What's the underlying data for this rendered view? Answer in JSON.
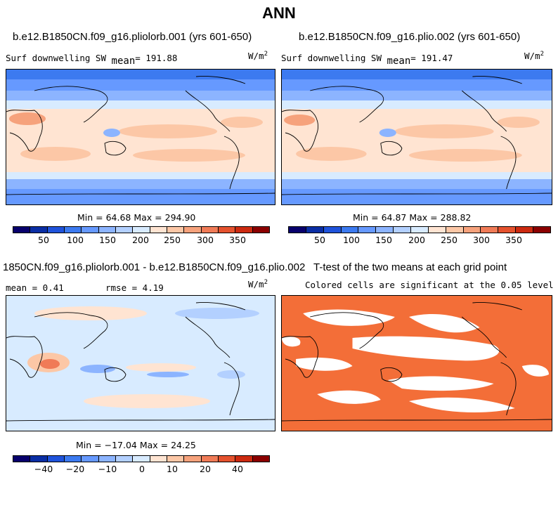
{
  "figure": {
    "title": "ANN"
  },
  "panels": [
    {
      "title": "b.e12.B1850CN.f09_g16.pliolorb.001 (yrs 601-650)",
      "variable": "Surf downwelling SW",
      "mean_label": "mean",
      "mean_value": "= 191.88",
      "units": "W/m",
      "units_exp": "2",
      "stats": "Min =  64.68 Max = 294.90",
      "colorbar_ticks": [
        "50",
        "100",
        "150",
        "200",
        "250",
        "300",
        "350"
      ]
    },
    {
      "title": "b.e12.B1850CN.f09_g16.plio.002 (yrs 601-650)",
      "variable": "Surf downwelling SW",
      "mean_label": "mean",
      "mean_value": "= 191.47",
      "units": "W/m",
      "units_exp": "2",
      "stats": "Min =  64.87 Max = 288.82",
      "colorbar_ticks": [
        "50",
        "100",
        "150",
        "200",
        "250",
        "300",
        "350"
      ]
    },
    {
      "title": "1850CN.f09_g16.pliolorb.001 - b.e12.B1850CN.f09_g16.plio.002",
      "mean_text": "mean =   0.41",
      "rmse_text": "rmse =   4.19",
      "units": "W/m",
      "units_exp": "2",
      "stats": "Min = −17.04 Max =  24.25",
      "colorbar_ticks": [
        "−40",
        "−20",
        "−10",
        "0",
        "10",
        "20",
        "40"
      ]
    },
    {
      "title": "T-test of the two means at each grid point",
      "subtitle": "Colored cells are significant at the 0.05 level",
      "significant_color": "#f36e38"
    }
  ],
  "colors": {
    "abs_scale": [
      "#08006c",
      "#0a2ea4",
      "#1f53db",
      "#3c7af0",
      "#6699ff",
      "#8cb4ff",
      "#b3d0ff",
      "#d8ebff",
      "#ffe4d2",
      "#fcc7a6",
      "#f6a27c",
      "#f07b57",
      "#e5522e",
      "#cc2a10",
      "#8b0000"
    ],
    "diff_scale": [
      "#08006c",
      "#0a2ea4",
      "#1f53db",
      "#3c7af0",
      "#6699ff",
      "#8cb4ff",
      "#b3d0ff",
      "#d8ebff",
      "#ffe4d2",
      "#fcc7a6",
      "#f6a27c",
      "#f07b57",
      "#e5522e",
      "#cc2a10",
      "#8b0000"
    ]
  }
}
